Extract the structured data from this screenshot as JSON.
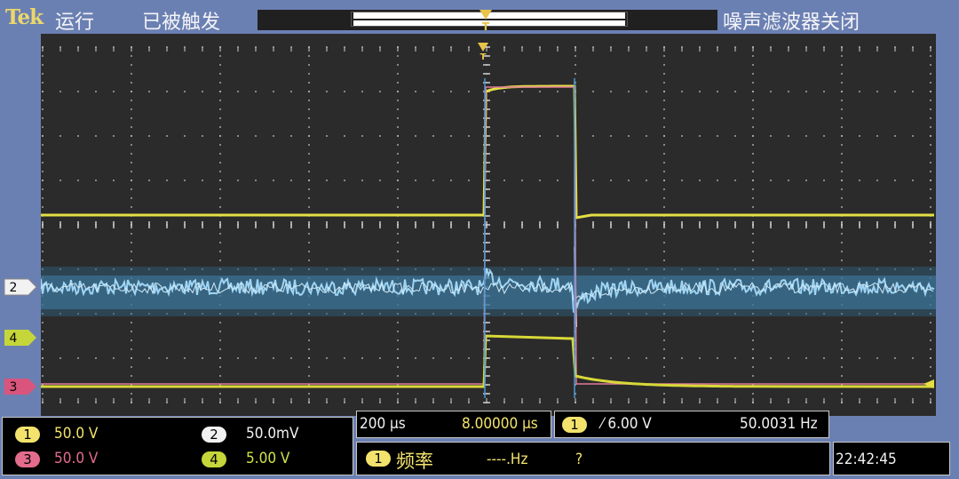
{
  "top": {
    "brand": "Tek",
    "run_state": "运行",
    "trigger_state": "已被触发",
    "noise_filter": "噪声滤波器关闭"
  },
  "channels": {
    "ch1": {
      "number": "1",
      "scale": "50.0 V",
      "color": "#f3e36d"
    },
    "ch2": {
      "number": "2",
      "scale": "50.0mV",
      "color": "#f2f2f2"
    },
    "ch3": {
      "number": "3",
      "scale": "50.0 V",
      "color": "#e36c8d"
    },
    "ch4": {
      "number": "4",
      "scale": "5.00 V",
      "color": "#d2e34a"
    }
  },
  "markers": {
    "ch2": "2",
    "ch4": "4",
    "ch3": "3"
  },
  "timebase": {
    "scale": "200 µs",
    "position": "8.00000 µs"
  },
  "trigger": {
    "source": "1",
    "slope_level": "⁄ 6.00 V",
    "frequency": "50.0031 Hz"
  },
  "measurement": {
    "source": "1",
    "label": "频率",
    "value": "----.Hz",
    "status": "?"
  },
  "clock": "22:42:45",
  "colors": {
    "frame": "#6b80b2",
    "screen": "#2b2b2b",
    "grid": "#d8d8d8",
    "cursor": "#4a9ad8"
  }
}
